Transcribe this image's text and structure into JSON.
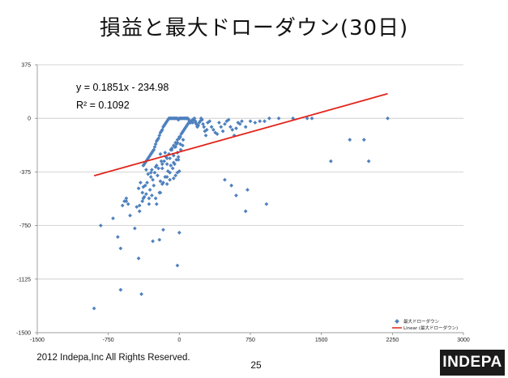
{
  "slide": {
    "title": "損益と最大ドローダウン(30日)",
    "footer_text": "2012 Indepa,Inc All Rights Reserved.",
    "page_number": "25",
    "logo_text": "INDEPA"
  },
  "chart_data": {
    "type": "scatter",
    "title": "",
    "xlabel": "",
    "ylabel": "",
    "xlim": [
      -1500,
      3000
    ],
    "ylim": [
      -1500,
      375
    ],
    "x_ticks": [
      -1500,
      -750,
      0,
      750,
      1500,
      2250,
      3000
    ],
    "y_ticks": [
      375,
      0,
      -375,
      -750,
      -1125,
      -1500
    ],
    "x_tick_labels": [
      "-1500",
      "-750",
      "0",
      "750",
      "1500",
      "2250",
      "3000"
    ],
    "y_tick_labels": [
      "375",
      "0",
      "-375",
      "-750",
      "-1125",
      "-1500"
    ],
    "grid": "horizontal",
    "legend_position": "bottom-right",
    "annotations": [
      "y = 0.1851x - 234.98",
      "R² = 0.1092"
    ],
    "colors": {
      "points": "#4f81bd",
      "trendline": "#e1251b"
    },
    "series": [
      {
        "name": "最大ドローダウン",
        "style": "markers",
        "x": [
          -900,
          -620,
          -580,
          -560,
          -520,
          -470,
          -450,
          -420,
          -400,
          -390,
          -380,
          -370,
          -360,
          -350,
          -340,
          -330,
          -320,
          -310,
          -300,
          -290,
          -280,
          -270,
          -260,
          -250,
          -240,
          -230,
          -220,
          -210,
          -200,
          -190,
          -180,
          -170,
          -160,
          -150,
          -140,
          -130,
          -120,
          -110,
          -100,
          -90,
          -80,
          -70,
          -60,
          -50,
          -40,
          -30,
          -20,
          -10,
          0,
          10,
          20,
          30,
          40,
          50,
          60,
          70,
          80,
          90,
          100,
          110,
          120,
          130,
          140,
          150,
          160,
          170,
          180,
          190,
          200,
          210,
          220,
          230,
          240,
          250,
          260,
          270,
          280,
          290,
          300,
          320,
          340,
          360,
          380,
          400,
          420,
          440,
          460,
          480,
          500,
          520,
          540,
          560,
          580,
          600,
          620,
          640,
          660,
          700,
          750,
          800,
          850,
          900,
          950,
          1050,
          1200,
          1350,
          1400,
          1600,
          1800,
          1950,
          2000,
          2200,
          -350,
          -300,
          -250,
          -200,
          -150,
          -100,
          -80,
          -60,
          -40,
          -20,
          10,
          30,
          50,
          70,
          90,
          110,
          130,
          150,
          170,
          190,
          -330,
          -290,
          -240,
          -190,
          -140,
          -90,
          -50,
          -30,
          0,
          20,
          40,
          60,
          80,
          100,
          120,
          140,
          -280,
          -230,
          -180,
          -130,
          -60,
          -20,
          10,
          40,
          -270,
          -200,
          -150,
          -120,
          -90,
          -60,
          -30,
          -10,
          15,
          35,
          -380,
          -360,
          -340,
          -300,
          -260,
          -220,
          -180,
          -160,
          -130,
          -110,
          -80,
          -40,
          -20,
          0,
          -430,
          -410,
          -390,
          -370,
          -350,
          -320,
          -310,
          -290,
          -250,
          -210,
          -170,
          -130,
          -100,
          -70,
          -50,
          -10,
          -600,
          -700,
          -830,
          -650,
          -560,
          -540,
          -420,
          -380,
          -320,
          -240,
          -200,
          -180,
          -130,
          -100,
          -60,
          -40,
          -20,
          0,
          -280,
          -210,
          -170,
          0,
          -620,
          -430,
          -20,
          600,
          720,
          920,
          550,
          480,
          700
        ],
        "y": [
          -1330,
          -1200,
          -580,
          -560,
          -680,
          -770,
          -620,
          -610,
          -1230,
          -580,
          -330,
          -320,
          -310,
          -300,
          -290,
          -280,
          -270,
          -260,
          -250,
          -240,
          -230,
          -220,
          -200,
          -180,
          -160,
          -150,
          -140,
          -120,
          -100,
          -90,
          -80,
          -60,
          -50,
          -40,
          -30,
          -20,
          -10,
          0,
          0,
          0,
          0,
          0,
          0,
          0,
          0,
          0,
          0,
          -10,
          0,
          0,
          0,
          0,
          0,
          0,
          0,
          0,
          0,
          0,
          -10,
          -20,
          -30,
          -20,
          -10,
          -5,
          0,
          -20,
          -40,
          -60,
          -50,
          -30,
          -20,
          0,
          -10,
          -40,
          -60,
          -90,
          -120,
          -80,
          -30,
          -20,
          -60,
          -80,
          -100,
          -110,
          -30,
          -60,
          -90,
          -40,
          -20,
          -10,
          -60,
          -80,
          -120,
          -70,
          -30,
          -40,
          -20,
          -60,
          -20,
          -30,
          -20,
          -20,
          0,
          0,
          0,
          0,
          0,
          -300,
          -150,
          -150,
          -300,
          0,
          -360,
          -380,
          -340,
          -250,
          -240,
          -280,
          -210,
          -190,
          -170,
          -150,
          -130,
          -100,
          -80,
          -60,
          -40,
          -30,
          -20,
          -10,
          -30,
          -50,
          -390,
          -360,
          -330,
          -300,
          -270,
          -220,
          -200,
          -180,
          -130,
          -110,
          -90,
          -70,
          -50,
          -30,
          -20,
          -30,
          -430,
          -400,
          -350,
          -320,
          -260,
          -240,
          -180,
          -150,
          -470,
          -440,
          -410,
          -370,
          -330,
          -310,
          -290,
          -270,
          -220,
          -190,
          -480,
          -470,
          -450,
          -410,
          -380,
          -350,
          -320,
          -300,
          -280,
          -250,
          -220,
          -200,
          -170,
          -140,
          -490,
          -450,
          -520,
          -550,
          -530,
          -600,
          -500,
          -540,
          -560,
          -520,
          -450,
          -410,
          -380,
          -350,
          -320,
          -290,
          -610,
          -700,
          -750,
          -830,
          -580,
          -600,
          -650,
          -560,
          -560,
          -600,
          -520,
          -460,
          -460,
          -430,
          -420,
          -400,
          -380,
          -370,
          -860,
          -850,
          -780,
          -800,
          -910,
          -980,
          -1030,
          -540,
          -500,
          -600,
          -470,
          -430,
          -650
        ]
      },
      {
        "name": "Linear (最大ドローダウン)",
        "style": "line",
        "x": [
          -900,
          2200
        ],
        "y": [
          -401.6,
          172.2
        ]
      }
    ]
  }
}
